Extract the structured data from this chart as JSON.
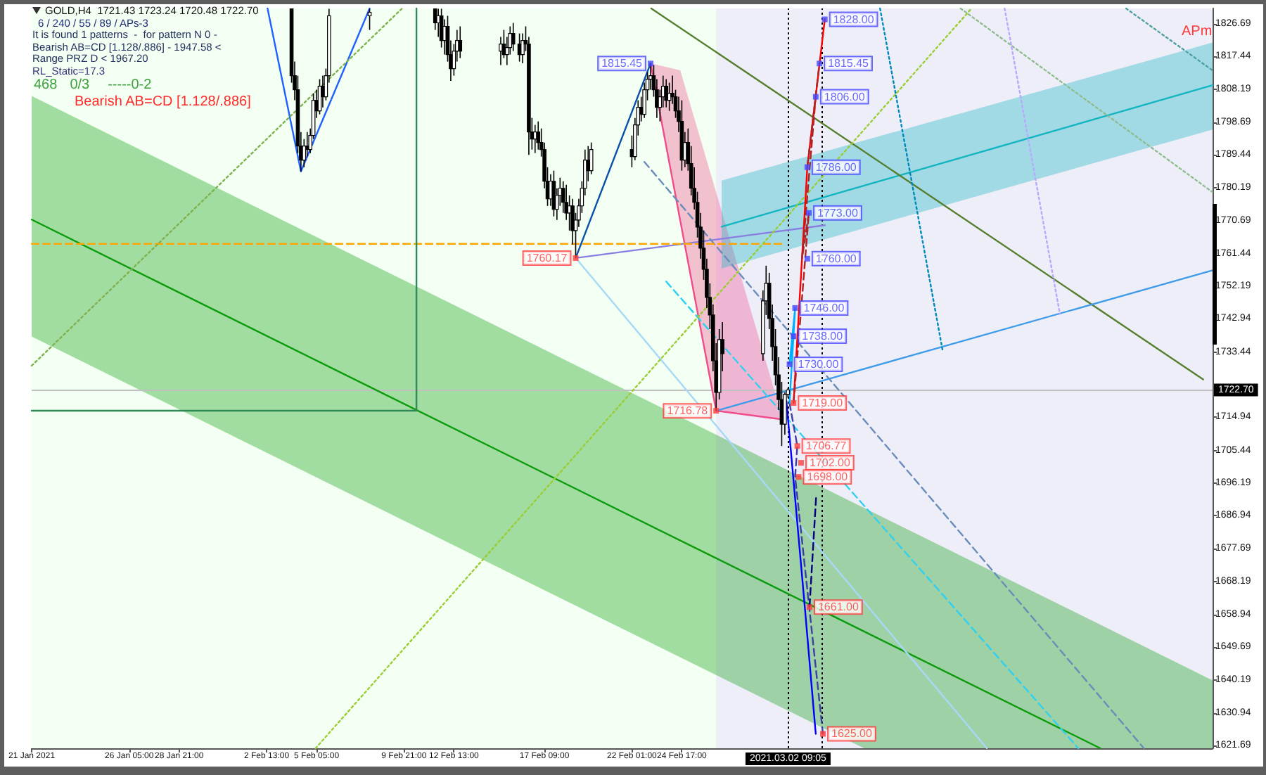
{
  "chart_data": {
    "type": "candlestick",
    "title": "GOLD,H4  1721.43 1723.24 1720.48 1722.70",
    "subtitle": "6 / 240 / 55 / 89 / APs-3",
    "annotations": [
      "It is found 1 patterns  -  for pattern N 0 - Bearish AB=CD [1.128/.886] - 1947.58 < Range PRZ D < 1967.20",
      "RL_Static=17.3",
      "468",
      "0/3",
      "-----0-2",
      "Bearish AB=CD [1.128/.886]",
      "APm"
    ],
    "xlim": [
      "2021-01-21",
      "2021-03-25T01:00"
    ],
    "xticks": [
      {
        "value": "2021-01-21",
        "label": "21 Jan 2021"
      },
      {
        "value": "2021-01-26T05:00",
        "label": "26 Jan 05:00"
      },
      {
        "value": "2021-01-28T21:00",
        "label": "28 Jan 21:00"
      },
      {
        "value": "2021-02-02T13:00",
        "label": "2 Feb 13:00"
      },
      {
        "value": "2021-02-05T05:00",
        "label": "5 Feb 05:00"
      },
      {
        "value": "2021-02-09T21:00",
        "label": "9 Feb 21:00"
      },
      {
        "value": "2021-02-12T13:00",
        "label": "12 Feb 13:00"
      },
      {
        "value": "2021-02-17T09:00",
        "label": "17 Feb 09:00"
      },
      {
        "value": "2021-02-22T01:00",
        "label": "22 Feb 01:00"
      },
      {
        "value": "2021-02-24T17:00",
        "label": "24 Feb 17:00"
      }
    ],
    "ylim": [
      1620.9,
      1831.1
    ],
    "yticks": [
      1826.69,
      1817.44,
      1808.19,
      1798.69,
      1789.44,
      1780.19,
      1770.69,
      1761.44,
      1752.19,
      1742.94,
      1733.44,
      {
        "value": 1724.19,
        "label": null
      },
      1714.94,
      1705.44,
      1696.19,
      1686.94,
      1677.69,
      1668.19,
      1658.94,
      1649.69,
      1640.19,
      1630.94,
      1621.69
    ],
    "marker": "none",
    "ref_lines": [
      {
        "axis": "y",
        "value": 1722.7,
        "label": "1722.70",
        "color": "#c0c0c0"
      },
      {
        "axis": "x",
        "value": "2021-03-02T09:05",
        "label": "2021.03.02 09:05",
        "color": "#000000",
        "line_style": "dotted"
      },
      {
        "axis": "x",
        "value": "2021-03-04T05:00",
        "color": "#000000",
        "line_style": "dotted"
      }
    ],
    "bands": [
      {
        "axis": "x",
        "from": "2021-02-26T13:00",
        "to": "2021-03-25T01:00",
        "color": "#eeeef9"
      }
    ],
    "series": [
      {
        "type": "line",
        "color": "#0b9b0b",
        "x": [
          "2021-01-21",
          "2021-03-06T10:30",
          "2021-03-19T01:12",
          "2021-03-25T01:00"
        ],
        "values": [
          1771.1,
          1654.1,
          1620.9,
          null
        ],
        "lower": [
          1737.9,
          1620.9,
          1620.9,
          1620.9
        ],
        "upper": [
          1806.2,
          1689.2,
          1656.0,
          1640.2
        ]
      },
      {
        "type": "line",
        "color": "#f04c8c",
        "x": [
          "2021-02-23T01:00",
          "2021-02-24T15:00",
          "2021-02-26T13:00",
          "2021-03-02T02:36"
        ],
        "values": [
          1815.5,
          1770.8,
          1716.8,
          1714.3
        ],
        "lower": [
          1815.5,
          1770.8,
          1716.8,
          1714.3
        ],
        "upper": [
          1815.5,
          1813.5,
          1778.8,
          1714.3
        ]
      },
      {
        "type": "line",
        "color": "#12b5c0",
        "x": [
          "2021-02-26T20:00",
          "2021-03-25T01:00"
        ],
        "values": [
          1769.1,
          1809.3
        ],
        "lower": [
          1757.2,
          1796.7
        ],
        "upper": [
          1782.2,
          1821.4
        ]
      },
      {
        "type": "line",
        "color": "#557f2f",
        "x": [
          "2021-02-23T01:48",
          "2021-03-24T13:00"
        ],
        "values": [
          1831.1,
          1725.7
        ]
      },
      {
        "type": "line",
        "color": "#3d9be9",
        "x": [
          "2021-02-26T13:00",
          "2021-03-25T01:00"
        ],
        "values": [
          1716.8,
          1756.7
        ]
      },
      {
        "type": "line",
        "color": "#0a4fa8",
        "x": [
          "2021-02-19T01:00",
          "2021-02-23T01:00"
        ],
        "values": [
          1760.2,
          1815.5
        ]
      },
      {
        "type": "line",
        "color": "#8a7fe0",
        "x": [
          "2021-02-19T01:00",
          "2021-03-04T08:12"
        ],
        "values": [
          1760.2,
          1769.5
        ]
      },
      {
        "type": "line",
        "color": "#a8d8f8",
        "x": [
          "2021-02-19T01:00",
          "2021-03-12T23:48"
        ],
        "values": [
          1760.2,
          1620.9
        ]
      },
      {
        "type": "line",
        "color": "#6a8cba",
        "line_style": "dashed",
        "x": [
          "2021-02-22T17:00",
          "2021-03-21T09:00"
        ],
        "values": [
          1787.5,
          1620.9
        ]
      },
      {
        "type": "line",
        "color": "#30d0f0",
        "line_style": "dashed",
        "x": [
          "2021-02-23T21:00",
          "2021-03-17T21:00"
        ],
        "values": [
          1753.5,
          1620.9
        ]
      },
      {
        "type": "line",
        "color": "#2060ff",
        "x": [
          "2021-02-02T14:12",
          "2021-02-04T09:00",
          "2021-02-08T01:00"
        ],
        "values": [
          1831.1,
          1784.8,
          1831.1
        ]
      },
      {
        "type": "line",
        "color": "#ffa500",
        "line_style": "dashed",
        "x": [
          "2021-01-21",
          "2021-03-02T01:00"
        ],
        "values": [
          1764.2,
          1764.2
        ]
      },
      {
        "type": "line",
        "color": "#2e8b57",
        "x": [
          "2021-01-21",
          "2021-02-10T13:00",
          "2021-02-10T13:00"
        ],
        "values": [
          1716.8,
          1716.8,
          1831.1
        ]
      },
      {
        "type": "line",
        "color": "#7fb24f",
        "line_style": "dotted",
        "x": [
          "2021-01-21",
          "2021-02-09T18:36"
        ],
        "values": [
          1729.6,
          1831.1
        ]
      },
      {
        "type": "line",
        "color": "#9acd32",
        "line_style": "dotted",
        "x": [
          "2021-02-05T03:48",
          "2021-03-12T04:12"
        ],
        "values": [
          1620.9,
          1831.1
        ]
      },
      {
        "type": "line",
        "color": "#8fbc8f",
        "line_style": "dotted",
        "x": [
          "2021-03-11T14:12",
          "2021-03-25T01:00"
        ],
        "values": [
          1831.1,
          1778.9
        ]
      },
      {
        "type": "line",
        "color": "#50a0a0",
        "line_style": "dotted",
        "x": [
          "2021-03-20T10:12",
          "2021-03-25T01:00"
        ],
        "values": [
          1831.1,
          1813.5
        ]
      },
      {
        "type": "line",
        "color": "#0088bb",
        "line_style": "dotted",
        "x": [
          "2021-03-07T07:00",
          "2021-03-10T15:24"
        ],
        "values": [
          1831.1,
          1733.6
        ]
      },
      {
        "type": "line",
        "color": "#b8a8ff",
        "line_style": "dotted",
        "x": [
          "2021-03-13T22:36",
          "2021-03-16T21:24"
        ],
        "values": [
          1831.1,
          1744.3
        ]
      },
      {
        "type": "line",
        "color": "#ff0000",
        "x": [
          "2021-03-02T16:12",
          "2021-03-03T09:48",
          "2021-03-04T08:12"
        ],
        "values": [
          1719,
          1786,
          1828
        ]
      },
      {
        "type": "line",
        "color": "#b22222",
        "line_style": "dashed",
        "x": [
          "2021-03-02T16:12",
          "2021-03-03T11:48",
          "2021-03-03T03:00",
          "2021-03-03T20:36",
          "2021-03-03T09:48",
          "2021-03-04T01:24"
        ],
        "values": [
          1719,
          1773,
          1760,
          1806,
          1786,
          1815.5
        ]
      },
      {
        "type": "line",
        "color": "#0000ff",
        "x": [
          "2021-03-02T07:00",
          "2021-03-02T16:12",
          "2021-03-03T06:36",
          "2021-03-03T20:36"
        ],
        "values": [
          1719.6,
          1696.8,
          1661,
          1625
        ]
      },
      {
        "type": "line",
        "color": "#4040a0",
        "line_style": "dashed",
        "x": [
          "2021-03-02T11:00",
          "2021-03-02T21:00",
          "2021-03-02T18:12",
          "2021-03-04T05:48"
        ],
        "values": [
          1719,
          1706.8,
          1698,
          1625
        ]
      },
      {
        "type": "line",
        "color": "#000080",
        "line_style": "dashed",
        "x": [
          "2021-03-03T21:00",
          "2021-03-03T12:36"
        ],
        "values": [
          1692,
          1661
        ]
      },
      {
        "type": "line",
        "color": "#00b0ff",
        "x": [
          "2021-03-02T11:00",
          "2021-03-02T18:12",
          "2021-03-02T11:00",
          "2021-03-02T16:12"
        ],
        "values": [
          1719,
          1746,
          1730,
          1738
        ]
      },
      {
        "color": "#000000",
        "x": [
          "2021-02-03T21:00",
          "2021-02-04T01:00",
          "2021-02-04T05:00",
          "2021-02-04T09:00",
          "2021-02-04T13:00",
          "2021-02-04T17:00",
          "2021-02-04T21:00",
          "2021-02-05T01:00",
          "2021-02-05T05:00",
          "2021-02-05T09:00",
          "2021-02-05T13:00",
          "2021-02-05T17:00",
          "2021-02-05T21:00",
          "2021-02-08T01:00",
          "2021-02-11T13:00",
          "2021-02-11T17:00",
          "2021-02-11T21:00",
          "2021-02-12T01:00",
          "2021-02-12T05:00",
          "2021-02-12T09:00",
          "2021-02-12T13:00",
          "2021-02-12T17:00",
          "2021-02-12T21:00",
          "2021-02-15T01:00",
          "2021-02-15T05:00",
          "2021-02-15T09:00",
          "2021-02-15T13:00",
          "2021-02-15T17:00",
          "2021-02-16T01:00",
          "2021-02-16T05:00",
          "2021-02-16T09:00",
          "2021-02-16T13:00",
          "2021-02-16T17:00",
          "2021-02-16T21:00",
          "2021-02-17T01:00",
          "2021-02-17T05:00",
          "2021-02-17T09:00",
          "2021-02-17T13:00",
          "2021-02-17T17:00",
          "2021-02-17T21:00",
          "2021-02-18T01:00",
          "2021-02-18T05:00",
          "2021-02-18T09:00",
          "2021-02-18T13:00",
          "2021-02-18T17:00",
          "2021-02-18T21:00",
          "2021-02-19T01:00",
          "2021-02-19T05:00",
          "2021-02-19T09:00",
          "2021-02-19T13:00",
          "2021-02-19T17:00",
          "2021-02-19T21:00",
          "2021-02-22T01:00",
          "2021-02-22T05:00",
          "2021-02-22T09:00",
          "2021-02-22T13:00",
          "2021-02-22T17:00",
          "2021-02-22T21:00",
          "2021-02-23T01:00",
          "2021-02-23T05:00",
          "2021-02-23T09:00",
          "2021-02-23T13:00",
          "2021-02-23T17:00",
          "2021-02-23T21:00",
          "2021-02-24T01:00",
          "2021-02-24T05:00",
          "2021-02-24T09:00",
          "2021-02-24T13:00",
          "2021-02-24T17:00",
          "2021-02-24T21:00",
          "2021-02-25T01:00",
          "2021-02-25T05:00",
          "2021-02-25T09:00",
          "2021-02-25T13:00",
          "2021-02-25T17:00",
          "2021-02-25T21:00",
          "2021-02-26T01:00",
          "2021-02-26T05:00",
          "2021-02-26T09:00",
          "2021-02-26T13:00",
          "2021-02-26T17:00",
          "2021-02-26T21:00",
          "2021-03-01T01:00",
          "2021-03-01T05:00",
          "2021-03-01T09:00",
          "2021-03-01T13:00",
          "2021-03-01T17:00",
          "2021-03-01T21:00",
          "2021-03-02T01:00",
          "2021-03-02T05:00",
          "2021-03-02T09:00"
        ],
        "ohlc": [
          [
            1831,
            1831,
            1810,
            1812
          ],
          [
            1812,
            1816,
            1805,
            1808
          ],
          [
            1808,
            1812,
            1790,
            1792
          ],
          [
            1792,
            1796,
            1784.8,
            1788
          ],
          [
            1788,
            1794,
            1786,
            1792
          ],
          [
            1792,
            1796,
            1789,
            1791
          ],
          [
            1791,
            1797,
            1790,
            1795
          ],
          [
            1795,
            1807,
            1794,
            1805
          ],
          [
            1805,
            1808,
            1800,
            1802
          ],
          [
            1802,
            1811,
            1801,
            1809
          ],
          [
            1809,
            1812,
            1803,
            1806
          ],
          [
            1806,
            1814,
            1805,
            1812
          ],
          [
            1812,
            1831,
            1810,
            1829
          ],
          [
            1829,
            1831,
            1825,
            1830
          ],
          [
            1831,
            1831,
            1825,
            1827
          ],
          [
            1827,
            1831,
            1823,
            1829
          ],
          [
            1829,
            1831,
            1820,
            1822
          ],
          [
            1822,
            1828,
            1818,
            1826
          ],
          [
            1826,
            1829,
            1816,
            1818
          ],
          [
            1818,
            1822,
            1810.5,
            1814
          ],
          [
            1814,
            1821,
            1812,
            1819
          ],
          [
            1819,
            1825,
            1816,
            1822
          ],
          [
            1822,
            1826,
            1817,
            1819
          ],
          [
            1819,
            1823,
            1815,
            1821
          ],
          [
            1821,
            1825,
            1817,
            1818
          ],
          [
            1818,
            1823,
            1815,
            1820
          ],
          [
            1820,
            1826,
            1818,
            1824
          ],
          [
            1824,
            1827,
            1819,
            1821
          ],
          [
            1821,
            1824,
            1816,
            1818
          ],
          [
            1818,
            1824,
            1815.5,
            1822
          ],
          [
            1822,
            1826,
            1819,
            1821
          ],
          [
            1821,
            1823,
            1789.5,
            1796
          ],
          [
            1796,
            1800,
            1791,
            1794
          ],
          [
            1794,
            1798,
            1790,
            1796
          ],
          [
            1796,
            1799,
            1791,
            1793
          ],
          [
            1793,
            1797,
            1789,
            1791
          ],
          [
            1791,
            1793,
            1780,
            1782
          ],
          [
            1782,
            1786,
            1775,
            1777
          ],
          [
            1777,
            1784,
            1775,
            1782
          ],
          [
            1782,
            1785,
            1772,
            1774
          ],
          [
            1774,
            1780,
            1771,
            1778
          ],
          [
            1778,
            1783,
            1775,
            1780
          ],
          [
            1780,
            1782,
            1773,
            1776
          ],
          [
            1776,
            1781,
            1771,
            1773
          ],
          [
            1773,
            1778,
            1768,
            1775
          ],
          [
            1775,
            1777,
            1764,
            1768
          ],
          [
            1768,
            1773,
            1760.17,
            1771
          ],
          [
            1771,
            1777,
            1769,
            1775
          ],
          [
            1775,
            1782,
            1773,
            1780
          ],
          [
            1780,
            1791,
            1778,
            1788
          ],
          [
            1788,
            1792,
            1782,
            1785
          ],
          [
            1785,
            1793,
            1784,
            1791
          ],
          [
            1791,
            1795,
            1786,
            1789
          ],
          [
            1789,
            1800,
            1788,
            1798
          ],
          [
            1798,
            1805,
            1795,
            1803
          ],
          [
            1803,
            1806,
            1799,
            1801
          ],
          [
            1801,
            1810,
            1800,
            1808
          ],
          [
            1808,
            1813,
            1805,
            1811
          ],
          [
            1811,
            1815.45,
            1808,
            1812
          ],
          [
            1812,
            1815,
            1806,
            1808
          ],
          [
            1808,
            1811,
            1800,
            1803
          ],
          [
            1803,
            1808,
            1799,
            1806
          ],
          [
            1806,
            1812,
            1803,
            1809
          ],
          [
            1809,
            1811,
            1803,
            1805
          ],
          [
            1805,
            1810,
            1802,
            1807
          ],
          [
            1807,
            1812,
            1804,
            1806
          ],
          [
            1806,
            1808,
            1800,
            1802
          ],
          [
            1802,
            1806,
            1796,
            1799
          ],
          [
            1799,
            1805,
            1785,
            1788
          ],
          [
            1788,
            1796,
            1786,
            1793
          ],
          [
            1793,
            1797,
            1785,
            1787
          ],
          [
            1787,
            1792,
            1778,
            1780
          ],
          [
            1780,
            1786,
            1774,
            1776
          ],
          [
            1776,
            1779,
            1766,
            1769
          ],
          [
            1769,
            1773,
            1760,
            1763
          ],
          [
            1763,
            1768,
            1754,
            1757
          ],
          [
            1757,
            1760,
            1746,
            1749
          ],
          [
            1749,
            1753,
            1740,
            1744
          ],
          [
            1744,
            1747,
            1728,
            1731
          ],
          [
            1731,
            1736,
            1716.78,
            1722
          ],
          [
            1722,
            1740,
            1720,
            1737
          ],
          [
            1737,
            1742,
            1728,
            1733
          ],
          [
            1733,
            1751,
            1731,
            1748
          ],
          [
            1748,
            1758,
            1744,
            1753
          ],
          [
            1753,
            1756,
            1740,
            1743
          ],
          [
            1743,
            1747,
            1731,
            1735
          ],
          [
            1735,
            1740,
            1724,
            1727
          ],
          [
            1727,
            1732,
            1717,
            1720
          ],
          [
            1720,
            1725,
            1706.77,
            1713
          ],
          [
            1713,
            1722,
            1710,
            1721.43
          ],
          [
            1721.43,
            1723.24,
            1720.48,
            1722.7
          ]
        ]
      },
      {
        "type": "scatter",
        "color": "#4646ff",
        "marker": "square",
        "x": [
          "2021-03-04T08:12",
          "2021-03-04T01:24",
          "2021-03-03T20:36",
          "2021-03-03T09:48",
          "2021-03-03T11:48",
          "2021-03-03T09:48",
          "2021-03-02T18:12",
          "2021-03-02T16:12",
          "2021-03-02T11:00",
          "2021-02-23T01:00"
        ],
        "values": [
          1828,
          1815.45,
          1806,
          1786,
          1773,
          1760,
          1746,
          1738,
          1730,
          1815.45
        ],
        "value_labels": [
          "1828.00",
          "1815.45",
          "1806.00",
          "1786.00",
          "1773.00",
          "1760.00",
          "1746.00",
          "1738.00",
          "1730.00",
          "1815.45"
        ]
      },
      {
        "type": "scatter",
        "color": "#ff3c3c",
        "marker": "square",
        "x": [
          "2021-03-02T16:12",
          "2021-03-02T21:00",
          "2021-03-03T01:48",
          "2021-03-02T22:36",
          "2021-03-03T12:36",
          "2021-03-04T05:48",
          "2021-02-19T01:00",
          "2021-02-26T13:00"
        ],
        "values": [
          1719,
          1706.77,
          1702,
          1698,
          1661,
          1625,
          1760.17,
          1716.78
        ],
        "value_labels": [
          "1719.00",
          "1706.77",
          "1702.00",
          "1698.00",
          "1661.00",
          "1625.00",
          "1760.17",
          "1716.78"
        ]
      }
    ]
  }
}
